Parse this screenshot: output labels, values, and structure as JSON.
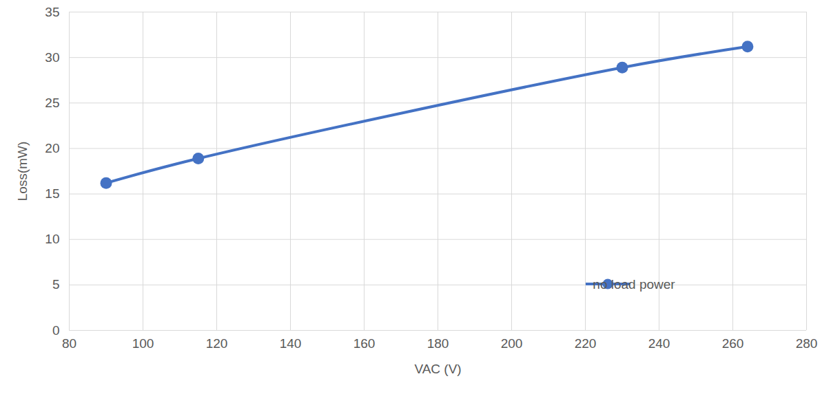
{
  "chart_data": {
    "type": "line",
    "x_label": "VAC (V)",
    "y_label": "Loss(mW)",
    "x": [
      90,
      115,
      230,
      264
    ],
    "series": [
      {
        "name": "no load power",
        "color": "#4472c4",
        "marker": "circle",
        "line_style": "smooth",
        "values": [
          16.2,
          18.9,
          28.9,
          31.2
        ]
      }
    ],
    "xlim": [
      80,
      280
    ],
    "xticks": [
      80,
      100,
      120,
      140,
      160,
      180,
      200,
      220,
      240,
      260,
      280
    ],
    "ylim": [
      0,
      35
    ],
    "yticks": [
      0,
      5,
      10,
      15,
      20,
      25,
      30,
      35
    ],
    "grid": true,
    "legend": "lower right"
  }
}
